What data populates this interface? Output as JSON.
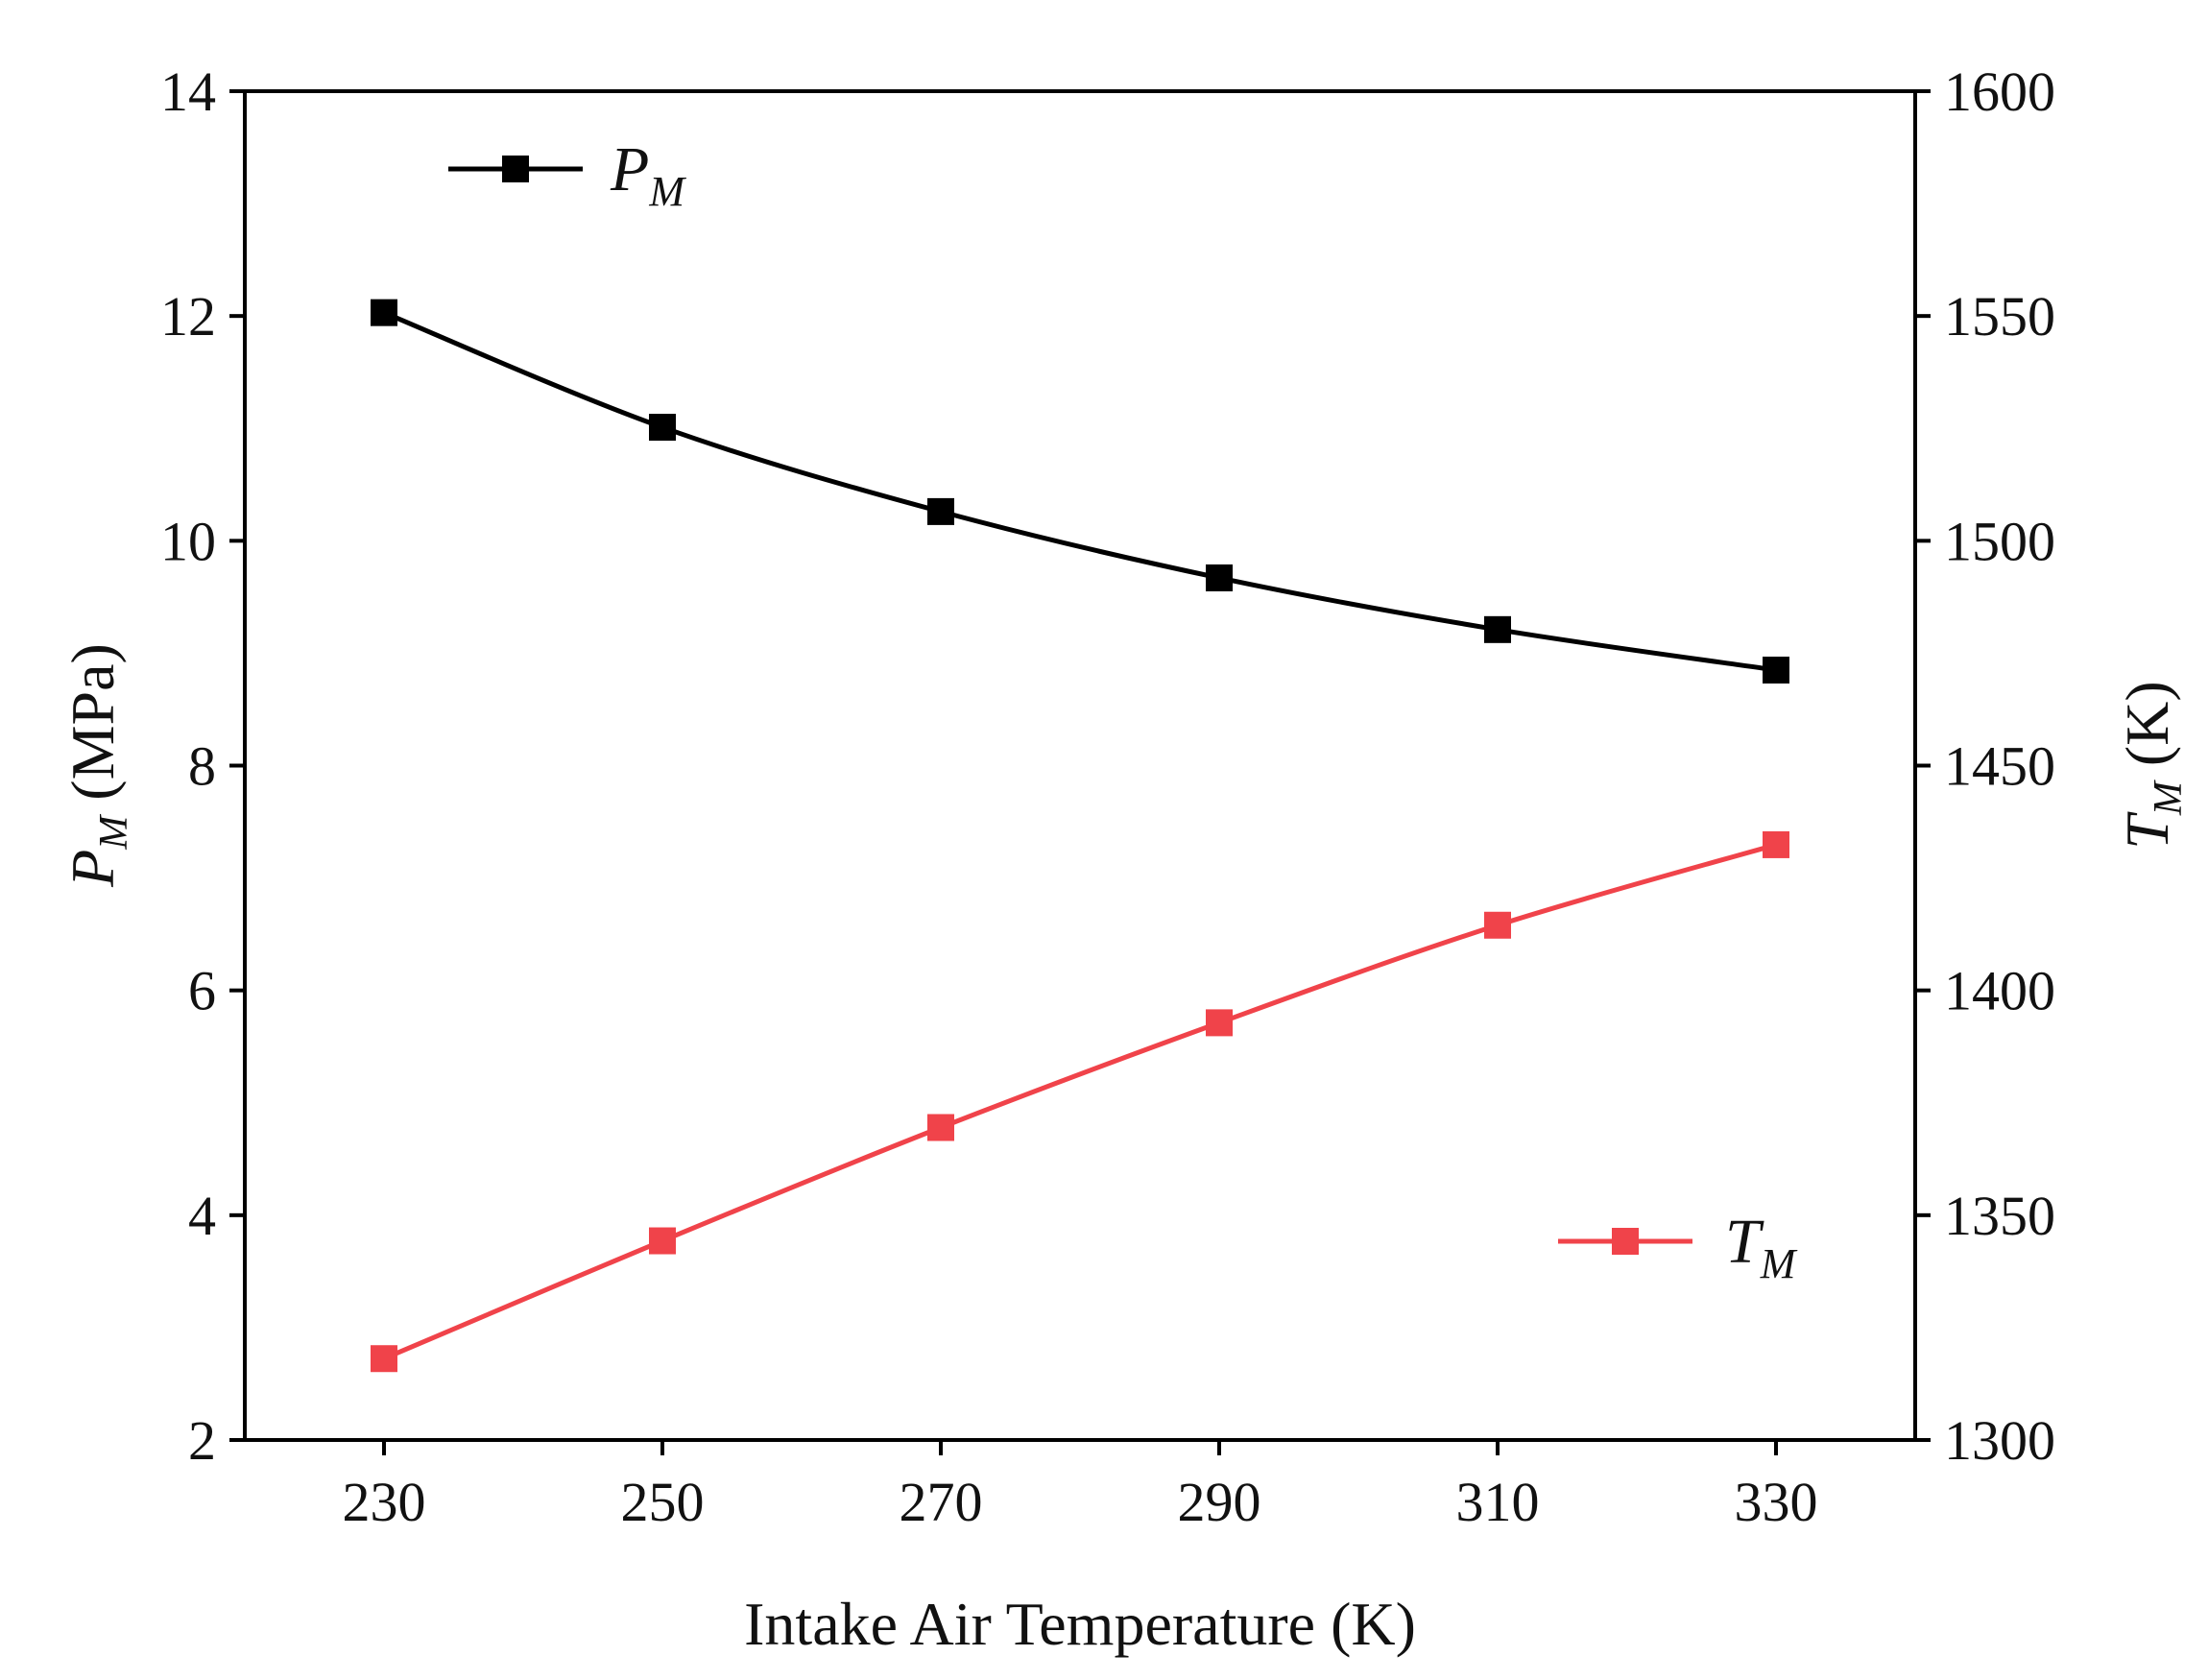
{
  "chart_data": {
    "type": "line",
    "title": "",
    "xlabel": "Intake Air Temperature (K)",
    "x": [
      230,
      250,
      270,
      290,
      310,
      330
    ],
    "xlim": [
      220,
      340
    ],
    "xticks": [
      "230",
      "250",
      "270",
      "290",
      "310",
      "330"
    ],
    "left_axis": {
      "label_main": "P",
      "label_sub": "M",
      "label_unit": " (MPa)",
      "ylim": [
        2,
        14
      ],
      "ticks": [
        "2",
        "4",
        "6",
        "8",
        "10",
        "12",
        "14"
      ]
    },
    "right_axis": {
      "label_main": "T",
      "label_sub": "M",
      "label_unit": " (K)",
      "ylim": [
        1300,
        1600
      ],
      "ticks": [
        "1300",
        "1350",
        "1400",
        "1450",
        "1500",
        "1550",
        "1600"
      ]
    },
    "series": [
      {
        "name": "P_M",
        "legend_main": "P",
        "legend_sub": "M",
        "axis": "left",
        "color": "#000000",
        "marker": "square",
        "values": [
          12.03,
          11.01,
          10.26,
          9.67,
          9.21,
          8.85
        ]
      },
      {
        "name": "T_M",
        "legend_main": "T",
        "legend_sub": "M",
        "axis": "right",
        "color": "#f0434a",
        "marker": "square",
        "values": [
          1318.1,
          1344.3,
          1369.5,
          1392.8,
          1414.5,
          1432.4
        ]
      }
    ],
    "legend": [
      "top-left",
      "bottom-right"
    ],
    "grid": false
  }
}
